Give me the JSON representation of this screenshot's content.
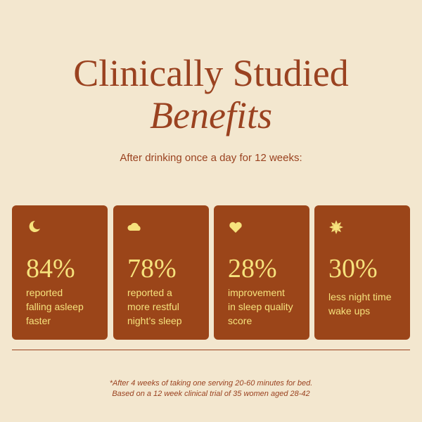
{
  "header": {
    "title_line1": "Clinically Studied",
    "title_line2": "Benefits",
    "subtitle": "After drinking once a day for 12 weeks:"
  },
  "cards": [
    {
      "stat": "84%",
      "lines": [
        "reported",
        "falling asleep",
        "faster"
      ]
    },
    {
      "stat": "78%",
      "lines": [
        "reported a",
        "more restful",
        "night’s sleep"
      ]
    },
    {
      "stat": "28%",
      "lines": [
        "improvement",
        "in sleep quality",
        "score"
      ]
    },
    {
      "stat": "30%",
      "lines": [
        "less night time",
        "wake ups"
      ]
    }
  ],
  "footnote": {
    "lines": [
      "*After 4 weeks of taking one serving 20-60 minutes for bed.",
      "Based on a 12 week clinical trial of 35 women aged 28-42"
    ]
  }
}
